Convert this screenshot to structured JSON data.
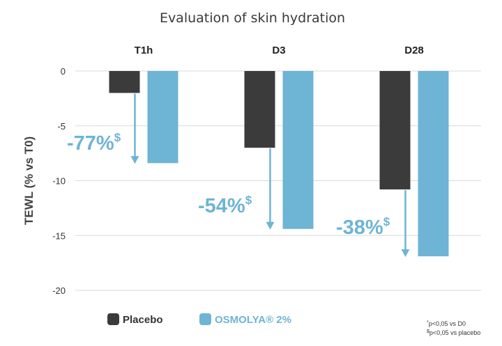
{
  "chart_data": {
    "type": "bar",
    "title": "Evaluation of skin hydration",
    "ylabel": "TEWL (% vs T0)",
    "xlabel": "",
    "ylim": [
      -20,
      0
    ],
    "yticks": [
      0,
      -5,
      -10,
      -15,
      -20
    ],
    "grid": true,
    "categories": [
      "T1h",
      "D3",
      "D28"
    ],
    "series": [
      {
        "name": "Placebo",
        "values": [
          -2.0,
          -7.0,
          -10.8
        ],
        "color": "#3b3b3b"
      },
      {
        "name": "OSMOLYA® 2%",
        "values": [
          -8.4,
          -14.4,
          -16.9
        ],
        "color": "#6eb4d4"
      }
    ],
    "annotations": [
      {
        "category": "T1h",
        "text": "-77%",
        "superscript": "$"
      },
      {
        "category": "D3",
        "text": "-54%",
        "superscript": "$"
      },
      {
        "category": "D28",
        "text": "-38%",
        "superscript": "$"
      }
    ],
    "legend": {
      "position": "bottom-left"
    },
    "accent_color": "#6eb4d4",
    "footnotes": [
      {
        "prefix": "*",
        "text": "p<0,05 vs D0"
      },
      {
        "prefix": "$",
        "text": "p<0,05 vs placebo"
      }
    ]
  }
}
